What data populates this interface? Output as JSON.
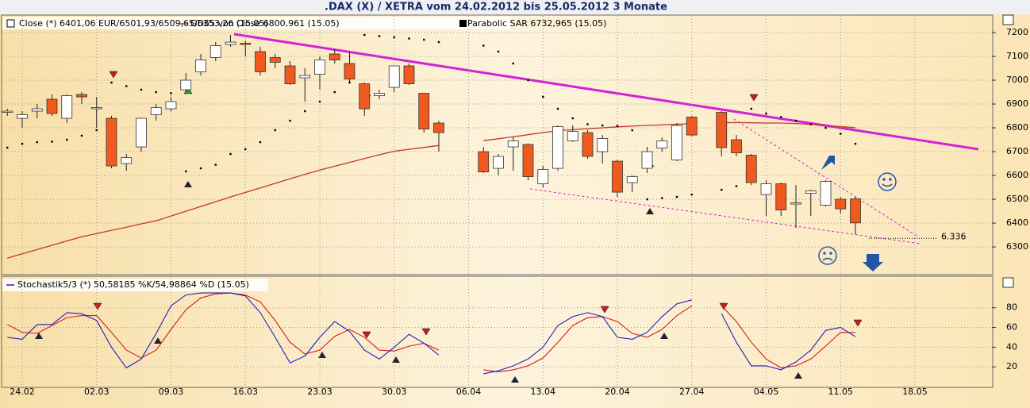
{
  "chart_data": [
    {
      "type": "candlestick",
      "title": ".DAX (X) / XETRA vom 24.02.2012 bis 25.05.2012 3 Monate",
      "name": "Close (*) 6401,06 EUR/6501,93/6509,65/6353,26 (15.05)",
      "up_color": "#ffffff",
      "down_color": "#f05a1e",
      "categories": [
        null,
        "24.02",
        null,
        null,
        null,
        null,
        "02.03",
        null,
        null,
        null,
        null,
        "09.03",
        null,
        null,
        null,
        null,
        "16.03",
        null,
        null,
        null,
        null,
        "23.03",
        null,
        null,
        null,
        null,
        "30.03",
        null,
        null,
        null,
        null,
        "06.04",
        null,
        null,
        null,
        null,
        "13.04",
        null,
        null,
        null,
        null,
        "20.04",
        null,
        null,
        null,
        null,
        "27.04",
        null,
        null,
        null,
        null,
        "04.05",
        null,
        null,
        null,
        null,
        "11.05",
        null,
        null,
        null,
        null,
        "18.05",
        null,
        null,
        null,
        null
      ],
      "open": [
        6870,
        6840,
        6870,
        6920,
        6840,
        6940,
        6880,
        6840,
        6650,
        6720,
        6855,
        6880,
        6960,
        7035,
        7095,
        7150,
        7155,
        7120,
        7095,
        7060,
        7010,
        7025,
        7110,
        7070,
        6985,
        6935,
        6970,
        7060,
        6945,
        6820,
        null,
        null,
        6700,
        6630,
        6720,
        6730,
        6565,
        6630,
        6745,
        6780,
        6700,
        6660,
        6570,
        6630,
        6715,
        6665,
        6845,
        null,
        6865,
        6750,
        6685,
        6520,
        6565,
        6480,
        6525,
        6475,
        6500,
        6501.93,
        null,
        null,
        null,
        null,
        null,
        null,
        null,
        null
      ],
      "high": [
        6880,
        6870,
        6900,
        6940,
        6940,
        6950,
        6930,
        6850,
        6690,
        6840,
        6900,
        6930,
        7030,
        7110,
        7160,
        7190,
        7165,
        7140,
        7110,
        7080,
        7050,
        7100,
        7130,
        7120,
        6990,
        6960,
        7060,
        7070,
        6945,
        6830,
        null,
        null,
        6720,
        6690,
        6760,
        6735,
        6640,
        6810,
        6810,
        6790,
        6770,
        6665,
        6600,
        6720,
        6760,
        6820,
        6850,
        null,
        6870,
        6770,
        6690,
        6580,
        6570,
        6560,
        6540,
        6580,
        6510,
        6509.65,
        null,
        null,
        null,
        null,
        null,
        null,
        null,
        null
      ],
      "low": [
        6850,
        6800,
        6840,
        6850,
        6820,
        6900,
        6800,
        6630,
        6620,
        6700,
        6830,
        6870,
        6950,
        7020,
        7080,
        7140,
        7100,
        7020,
        7050,
        6980,
        6910,
        6960,
        7070,
        6990,
        6850,
        6920,
        6950,
        6980,
        6780,
        6700,
        null,
        null,
        6610,
        6600,
        6620,
        6580,
        6550,
        6620,
        6740,
        6670,
        6650,
        6510,
        6530,
        6610,
        6700,
        6660,
        6765,
        null,
        6680,
        6680,
        6560,
        6430,
        6430,
        6380,
        6430,
        6470,
        6440,
        6353.26,
        null,
        null,
        null,
        null,
        null,
        null,
        null,
        null
      ],
      "close": [
        6870,
        6855,
        6880,
        6860,
        6935,
        6930,
        6885,
        6640,
        6675,
        6840,
        6885,
        6910,
        7000,
        7085,
        7145,
        7160,
        7150,
        7035,
        7075,
        6985,
        7020,
        7085,
        7085,
        7005,
        6880,
        6945,
        7060,
        6985,
        6795,
        6780,
        null,
        null,
        6615,
        6680,
        6745,
        6595,
        6625,
        6805,
        6785,
        6680,
        6755,
        6530,
        6595,
        6700,
        6745,
        6810,
        6770,
        null,
        6717,
        6695,
        6570,
        6565,
        6455,
        6485,
        6535,
        6575,
        6460,
        6401.06,
        null,
        null,
        null,
        null,
        null,
        null,
        null,
        null
      ],
      "series": [
        {
          "type": "line",
          "name": "GD65 von Close 6800,961 (15.05)",
          "color": "#c0392b",
          "values": [
            6253,
            6271,
            6289,
            6307,
            6325,
            6343,
            6356,
            6370,
            6383,
            6397,
            6410,
            6430,
            6450,
            6470,
            6490,
            6510,
            6529,
            6548,
            6567,
            6586,
            6605,
            6623,
            6639,
            6655,
            6671,
            6687,
            6702,
            6710,
            6718,
            6726,
            null,
            null,
            6746,
            6754,
            6762,
            6771,
            6780,
            6788,
            6792,
            6796,
            6800,
            6804,
            6807,
            6810,
            6812,
            6815,
            6817,
            null,
            6821,
            6822,
            6821,
            6820,
            6820,
            6818,
            6814,
            6810,
            6805,
            6800.961,
            null,
            null,
            null,
            null,
            null,
            null,
            null,
            null
          ]
        },
        {
          "type": "scatter",
          "name": "Parabolic SAR 6732,965 (15.05)",
          "color": "#000000",
          "values": [
            6717,
            6733,
            6740,
            6742,
            6750,
            6767,
            6790,
            6990,
            6975,
            6960,
            6950,
            6945,
            6617,
            6630,
            6645,
            6690,
            6710,
            6740,
            6790,
            6830,
            6870,
            6910,
            6950,
            6990,
            7190,
            7185,
            7180,
            7175,
            7170,
            7160,
            null,
            null,
            7145,
            7120,
            7070,
            7000,
            6930,
            6880,
            6840,
            6815,
            6810,
            6808,
            6790,
            6500,
            6505,
            6510,
            6520,
            null,
            6540,
            6555,
            6880,
            6860,
            6845,
            6830,
            6815,
            6800,
            6775,
            6732.965,
            null,
            null,
            null,
            null,
            null,
            null,
            null,
            null
          ]
        }
      ],
      "level": {
        "value": 6336,
        "label": "6.336"
      },
      "ylim": [
        6187,
        7270
      ],
      "yticks": [
        6300,
        6400,
        6500,
        6600,
        6700,
        6800,
        6900,
        7000,
        7100,
        7200
      ],
      "grid": true
    },
    {
      "type": "line",
      "series": [
        {
          "name": "Stochastik5/3 (*) 50,58185 %K/54,98864 %D (15.05)",
          "color": "#1f1fbf",
          "values": [
            50,
            48,
            63,
            63,
            75,
            74,
            67,
            40,
            19,
            28,
            54,
            82,
            93,
            95,
            95,
            95,
            92,
            75,
            50,
            24,
            31,
            50,
            66,
            56,
            37,
            28,
            40,
            53,
            44,
            32,
            null,
            null,
            13,
            16,
            21,
            28,
            40,
            62,
            71,
            75,
            71,
            50,
            48,
            55,
            71,
            84,
            88,
            null,
            74,
            45,
            21,
            21,
            17,
            25,
            37,
            57,
            60,
            50.58185,
            null,
            null,
            null,
            null,
            null,
            null,
            null,
            null
          ]
        },
        {
          "color": "#d02020",
          "values": [
            63,
            55,
            54,
            62,
            70,
            72,
            72,
            55,
            37,
            29,
            37,
            58,
            78,
            90,
            94,
            95,
            93,
            86,
            67,
            45,
            33,
            37,
            51,
            58,
            50,
            37,
            36,
            41,
            44,
            37,
            null,
            null,
            17,
            15,
            17,
            21,
            29,
            45,
            62,
            70,
            71,
            66,
            54,
            50,
            58,
            72,
            82,
            null,
            82,
            66,
            45,
            28,
            19,
            21,
            28,
            41,
            55,
            54.98864,
            null,
            null,
            null,
            null,
            null,
            null,
            null,
            null
          ]
        }
      ],
      "ylim": [
        0,
        112
      ],
      "yticks": [
        20,
        40,
        60,
        80
      ],
      "grid": true
    }
  ]
}
